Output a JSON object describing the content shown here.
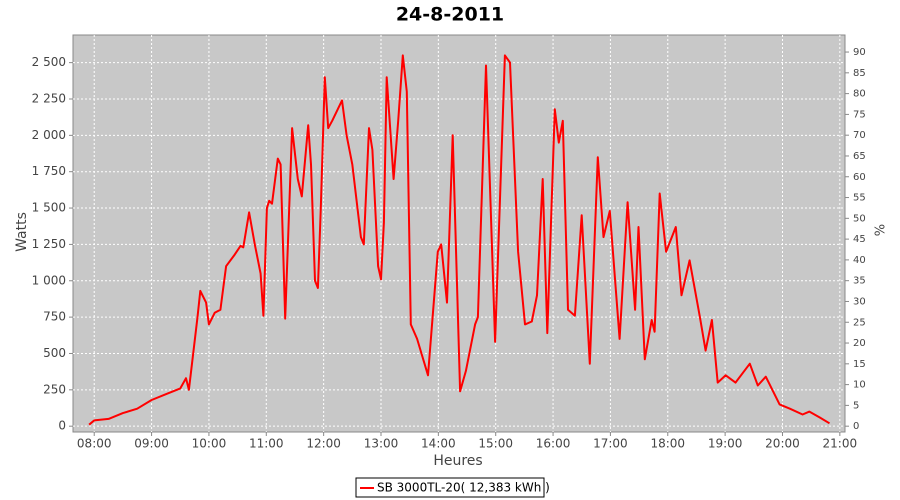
{
  "chart_data": {
    "type": "line",
    "title": "24-8-2011",
    "x_label": "Heures",
    "y_label": "Watts",
    "y2_label": "%",
    "xlim": [
      7.63,
      21.09
    ],
    "xticks": [
      {
        "value": 8,
        "label": "08:00"
      },
      {
        "value": 9,
        "label": "09:00"
      },
      {
        "value": 10,
        "label": "10:00"
      },
      {
        "value": 11,
        "label": "11:00"
      },
      {
        "value": 12,
        "label": "12:00"
      },
      {
        "value": 13,
        "label": "13:00"
      },
      {
        "value": 14,
        "label": "14:00"
      },
      {
        "value": 15,
        "label": "15:00"
      },
      {
        "value": 16,
        "label": "16:00"
      },
      {
        "value": 17,
        "label": "17:00"
      },
      {
        "value": 18,
        "label": "18:00"
      },
      {
        "value": 19,
        "label": "19:00"
      },
      {
        "value": 20,
        "label": "20:00"
      },
      {
        "value": 21,
        "label": "21:00"
      }
    ],
    "ylim": [
      -40,
      2690
    ],
    "yticks": [
      0,
      250,
      500,
      750,
      {
        "value": 1000,
        "label": "1 000"
      },
      {
        "value": 1250,
        "label": "1 250"
      },
      {
        "value": 1500,
        "label": "1 500"
      },
      {
        "value": 1750,
        "label": "1 750"
      },
      {
        "value": 2000,
        "label": "2 000"
      },
      {
        "value": 2250,
        "label": "2 250"
      },
      {
        "value": 2500,
        "label": "2 500"
      }
    ],
    "y2lim": [
      -1.4,
      94.1
    ],
    "y2ticks": [
      0,
      5,
      10,
      15,
      20,
      25,
      30,
      35,
      40,
      45,
      50,
      55,
      60,
      65,
      70,
      75,
      80,
      85,
      90
    ],
    "grid": true,
    "legend": "bottom",
    "x": [
      7.91,
      8.0,
      8.25,
      8.5,
      8.75,
      9.0,
      9.25,
      9.5,
      9.6,
      9.65,
      9.8,
      9.85,
      9.95,
      10.0,
      10.1,
      10.2,
      10.3,
      10.45,
      10.55,
      10.6,
      10.7,
      10.8,
      10.9,
      10.95,
      11.01,
      11.05,
      11.1,
      11.2,
      11.25,
      11.33,
      11.45,
      11.55,
      11.62,
      11.73,
      11.78,
      11.85,
      11.9,
      11.95,
      12.02,
      12.08,
      12.15,
      12.32,
      12.4,
      12.5,
      12.65,
      12.7,
      12.79,
      12.85,
      12.95,
      13.0,
      13.05,
      13.1,
      13.22,
      13.3,
      13.38,
      13.45,
      13.52,
      13.63,
      13.82,
      13.99,
      14.05,
      14.15,
      14.25,
      14.38,
      14.48,
      14.64,
      14.69,
      14.83,
      14.99,
      15.16,
      15.25,
      15.39,
      15.51,
      15.63,
      15.72,
      15.82,
      15.9,
      16.03,
      16.1,
      16.17,
      16.26,
      16.38,
      16.5,
      16.64,
      16.78,
      16.88,
      16.99,
      17.16,
      17.3,
      17.43,
      17.49,
      17.6,
      17.72,
      17.77,
      17.86,
      17.97,
      18.14,
      18.24,
      18.38,
      18.56,
      18.66,
      18.77,
      18.87,
      19.01,
      19.18,
      19.43,
      19.57,
      19.71,
      19.95,
      20.13,
      20.35,
      20.47,
      20.65,
      20.82
    ],
    "series": [
      {
        "name": "SB 3000TL-20( 12,383 kWh  )",
        "color": "#ff0000",
        "values": [
          10,
          40,
          50,
          90,
          120,
          180,
          220,
          260,
          330,
          250,
          750,
          930,
          850,
          700,
          780,
          800,
          1100,
          1180,
          1240,
          1230,
          1470,
          1250,
          1050,
          760,
          1500,
          1550,
          1530,
          1840,
          1800,
          740,
          2050,
          1700,
          1580,
          2070,
          1800,
          1000,
          950,
          1500,
          2400,
          2050,
          2100,
          2240,
          2000,
          1800,
          1300,
          1250,
          2050,
          1900,
          1100,
          1010,
          1400,
          2400,
          1700,
          2100,
          2550,
          2300,
          700,
          600,
          350,
          1200,
          1250,
          850,
          2000,
          240,
          380,
          700,
          750,
          2480,
          580,
          2550,
          2500,
          1200,
          700,
          720,
          900,
          1700,
          640,
          2180,
          1950,
          2100,
          800,
          760,
          1450,
          430,
          1850,
          1300,
          1480,
          600,
          1540,
          800,
          1370,
          460,
          730,
          650,
          1600,
          1200,
          1370,
          900,
          1140,
          750,
          520,
          730,
          300,
          350,
          300,
          430,
          280,
          340,
          150,
          120,
          80,
          100,
          60,
          20
        ]
      }
    ]
  }
}
